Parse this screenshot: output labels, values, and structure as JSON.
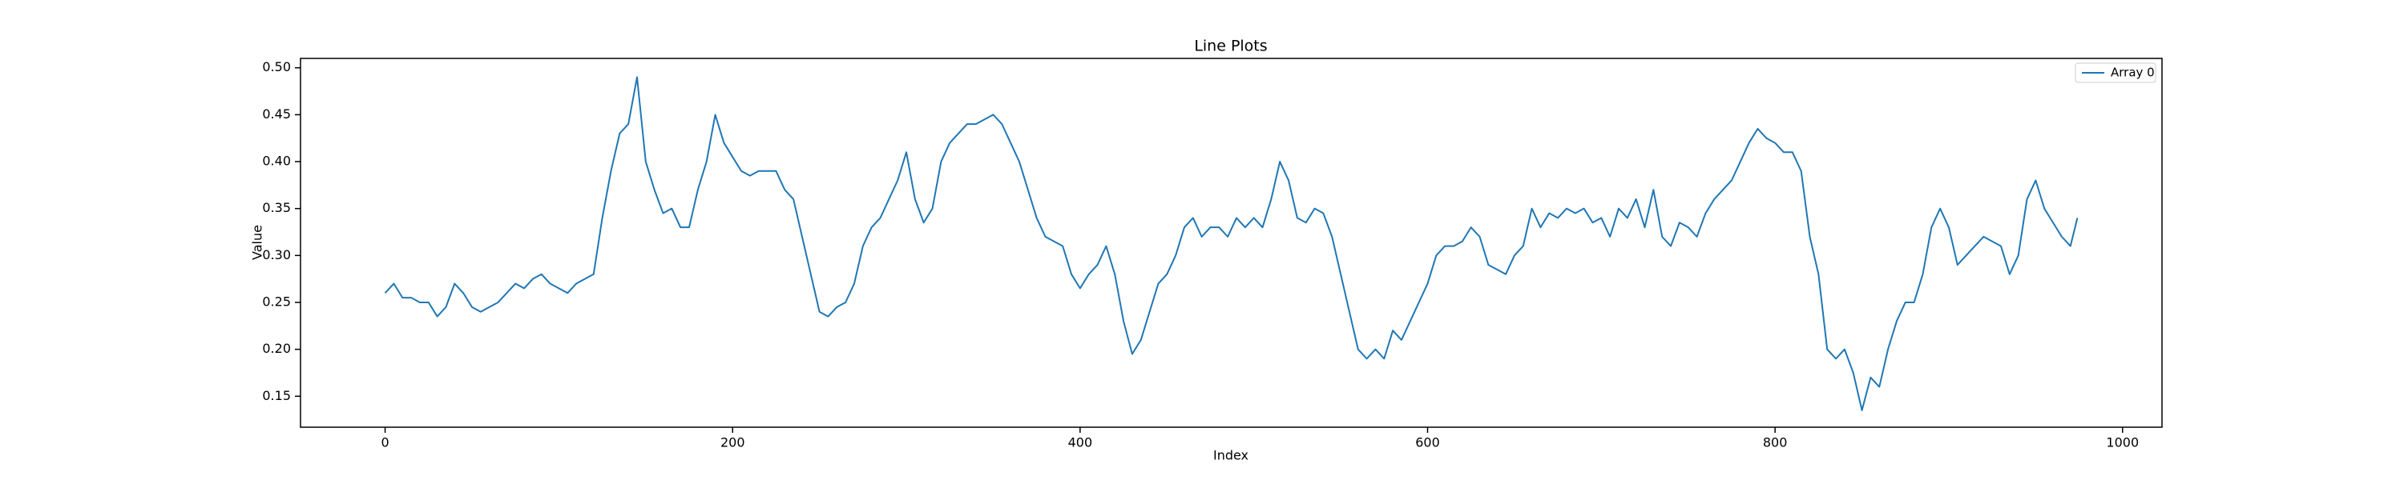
{
  "chart_data": {
    "type": "line",
    "title": "Line Plots",
    "xlabel": "Index",
    "ylabel": "Value",
    "x": [
      0,
      5,
      10,
      15,
      20,
      25,
      30,
      35,
      40,
      45,
      50,
      55,
      60,
      65,
      70,
      75,
      80,
      85,
      90,
      95,
      100,
      105,
      110,
      115,
      120,
      125,
      130,
      135,
      140,
      145,
      150,
      155,
      160,
      165,
      170,
      175,
      180,
      185,
      190,
      195,
      200,
      205,
      210,
      215,
      220,
      225,
      230,
      235,
      240,
      245,
      250,
      255,
      260,
      265,
      270,
      275,
      280,
      285,
      290,
      295,
      300,
      305,
      310,
      315,
      320,
      325,
      330,
      335,
      340,
      345,
      350,
      355,
      360,
      365,
      370,
      375,
      380,
      385,
      390,
      395,
      400,
      405,
      410,
      415,
      420,
      425,
      430,
      435,
      440,
      445,
      450,
      455,
      460,
      465,
      470,
      475,
      480,
      485,
      490,
      495,
      500,
      505,
      510,
      515,
      520,
      525,
      530,
      535,
      540,
      545,
      550,
      555,
      560,
      565,
      570,
      575,
      580,
      585,
      590,
      595,
      600,
      605,
      610,
      615,
      620,
      625,
      630,
      635,
      640,
      645,
      650,
      655,
      660,
      665,
      670,
      675,
      680,
      685,
      690,
      695,
      700,
      705,
      710,
      715,
      720,
      725,
      730,
      735,
      740,
      745,
      750,
      755,
      760,
      765,
      770,
      775,
      780,
      785,
      790,
      795,
      800,
      805,
      810,
      815,
      820,
      825,
      830,
      835,
      840,
      845,
      850,
      855,
      860,
      865,
      870,
      875,
      880,
      885,
      890,
      895,
      900,
      905,
      910,
      915,
      920,
      925,
      930,
      935,
      940,
      945,
      950,
      955,
      960,
      965,
      970,
      974
    ],
    "series": [
      {
        "name": "Array 0",
        "color": "#1f77b4",
        "values": [
          0.26,
          0.27,
          0.255,
          0.255,
          0.25,
          0.25,
          0.235,
          0.245,
          0.27,
          0.26,
          0.245,
          0.24,
          0.245,
          0.25,
          0.26,
          0.27,
          0.265,
          0.275,
          0.28,
          0.27,
          0.265,
          0.26,
          0.27,
          0.275,
          0.28,
          0.34,
          0.39,
          0.43,
          0.44,
          0.49,
          0.4,
          0.37,
          0.345,
          0.35,
          0.33,
          0.33,
          0.37,
          0.4,
          0.45,
          0.42,
          0.405,
          0.39,
          0.385,
          0.39,
          0.39,
          0.39,
          0.37,
          0.36,
          0.32,
          0.28,
          0.24,
          0.235,
          0.245,
          0.25,
          0.27,
          0.31,
          0.33,
          0.34,
          0.36,
          0.38,
          0.41,
          0.36,
          0.335,
          0.35,
          0.4,
          0.42,
          0.43,
          0.44,
          0.44,
          0.445,
          0.45,
          0.44,
          0.42,
          0.4,
          0.37,
          0.34,
          0.32,
          0.315,
          0.31,
          0.28,
          0.265,
          0.28,
          0.29,
          0.31,
          0.28,
          0.23,
          0.195,
          0.21,
          0.24,
          0.27,
          0.28,
          0.3,
          0.33,
          0.34,
          0.32,
          0.33,
          0.33,
          0.32,
          0.34,
          0.33,
          0.34,
          0.33,
          0.36,
          0.4,
          0.38,
          0.34,
          0.335,
          0.35,
          0.345,
          0.32,
          0.28,
          0.24,
          0.2,
          0.19,
          0.2,
          0.19,
          0.22,
          0.21,
          0.23,
          0.25,
          0.27,
          0.3,
          0.31,
          0.31,
          0.315,
          0.33,
          0.32,
          0.29,
          0.285,
          0.28,
          0.3,
          0.31,
          0.35,
          0.33,
          0.345,
          0.34,
          0.35,
          0.345,
          0.35,
          0.335,
          0.34,
          0.32,
          0.35,
          0.34,
          0.36,
          0.33,
          0.37,
          0.32,
          0.31,
          0.335,
          0.33,
          0.32,
          0.345,
          0.36,
          0.37,
          0.38,
          0.4,
          0.42,
          0.435,
          0.425,
          0.42,
          0.41,
          0.41,
          0.39,
          0.32,
          0.28,
          0.2,
          0.19,
          0.2,
          0.175,
          0.135,
          0.17,
          0.16,
          0.2,
          0.23,
          0.25,
          0.25,
          0.28,
          0.33,
          0.35,
          0.33,
          0.29,
          0.3,
          0.31,
          0.32,
          0.315,
          0.31,
          0.28,
          0.3,
          0.36,
          0.38,
          0.35,
          0.335,
          0.32,
          0.31,
          0.34
        ]
      }
    ],
    "xlim": [
      -48.7,
      1022.7
    ],
    "ylim": [
      0.117,
      0.51
    ],
    "xticks": [
      0,
      200,
      400,
      600,
      800,
      1000
    ],
    "yticks": [
      0.15,
      {
        "value": 0.2,
        "label": "0.20"
      },
      0.25,
      {
        "value": 0.3,
        "label": "0.30"
      },
      0.35,
      {
        "value": 0.4,
        "label": "0.40"
      },
      0.45,
      {
        "value": 0.5,
        "label": "0.50"
      }
    ],
    "legend": "upper right"
  }
}
